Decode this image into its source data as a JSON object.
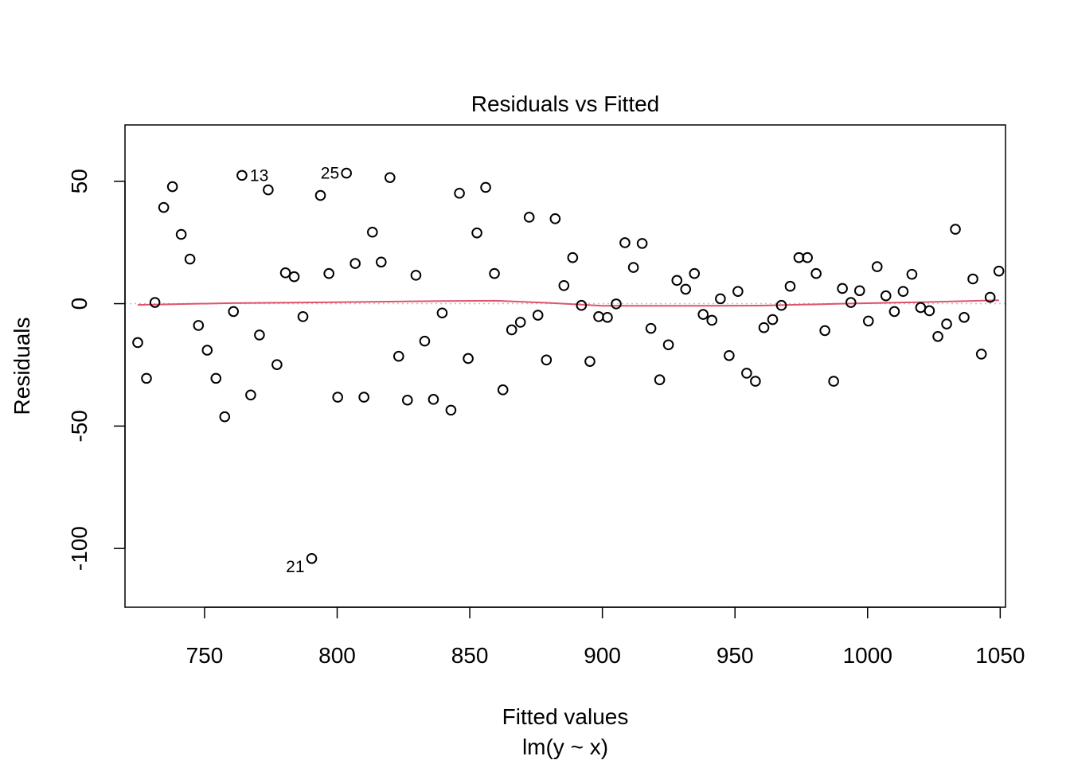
{
  "chart_data": {
    "type": "scatter",
    "title": "Residuals vs Fitted",
    "xlabel": "Fitted values",
    "subtitle": "lm(y ~ x)",
    "ylabel": "Residuals",
    "xlim": [
      720,
      1052
    ],
    "ylim": [
      -124,
      73
    ],
    "xticks": [
      750,
      800,
      850,
      900,
      950,
      1000,
      1050
    ],
    "yticks": [
      -100,
      -50,
      0,
      50
    ],
    "reference_line": 0,
    "colors": {
      "points": "#000000",
      "smoother": "#DF536B",
      "reference": "#BEBEBE"
    },
    "points": [
      {
        "x": 724.8,
        "y": -15.9
      },
      {
        "x": 728.1,
        "y": -30.5
      },
      {
        "x": 731.3,
        "y": 0.5
      },
      {
        "x": 734.6,
        "y": 39.3
      },
      {
        "x": 737.9,
        "y": 47.8
      },
      {
        "x": 741.2,
        "y": 28.3
      },
      {
        "x": 744.5,
        "y": 18.2
      },
      {
        "x": 747.7,
        "y": -8.9
      },
      {
        "x": 751.0,
        "y": -19.0
      },
      {
        "x": 754.3,
        "y": -30.5
      },
      {
        "x": 757.6,
        "y": -46.2
      },
      {
        "x": 760.9,
        "y": -3.2
      },
      {
        "x": 764.1,
        "y": 52.4,
        "label": "13"
      },
      {
        "x": 767.4,
        "y": -37.3
      },
      {
        "x": 770.7,
        "y": -12.8
      },
      {
        "x": 774.0,
        "y": 46.5
      },
      {
        "x": 777.3,
        "y": -24.9
      },
      {
        "x": 780.5,
        "y": 12.6
      },
      {
        "x": 783.8,
        "y": 11.0
      },
      {
        "x": 787.1,
        "y": -5.3
      },
      {
        "x": 790.4,
        "y": -104.1,
        "label": "21"
      },
      {
        "x": 793.7,
        "y": 44.2
      },
      {
        "x": 796.9,
        "y": 12.3
      },
      {
        "x": 800.2,
        "y": -38.2
      },
      {
        "x": 803.5,
        "y": 53.3,
        "label": "25"
      },
      {
        "x": 806.8,
        "y": 16.4
      },
      {
        "x": 810.1,
        "y": -38.2
      },
      {
        "x": 813.3,
        "y": 29.2
      },
      {
        "x": 816.6,
        "y": 17.0
      },
      {
        "x": 819.9,
        "y": 51.5
      },
      {
        "x": 823.2,
        "y": -21.5
      },
      {
        "x": 826.5,
        "y": -39.4
      },
      {
        "x": 829.7,
        "y": 11.6
      },
      {
        "x": 833.0,
        "y": -15.3
      },
      {
        "x": 836.3,
        "y": -39.1
      },
      {
        "x": 839.6,
        "y": -3.8
      },
      {
        "x": 842.9,
        "y": -43.5
      },
      {
        "x": 846.1,
        "y": 45.1
      },
      {
        "x": 849.4,
        "y": -22.4
      },
      {
        "x": 852.7,
        "y": 28.9
      },
      {
        "x": 856.0,
        "y": 47.5
      },
      {
        "x": 859.3,
        "y": 12.3
      },
      {
        "x": 862.5,
        "y": -35.2
      },
      {
        "x": 865.8,
        "y": -10.7
      },
      {
        "x": 869.1,
        "y": -7.6
      },
      {
        "x": 872.4,
        "y": 35.3
      },
      {
        "x": 875.7,
        "y": -4.7
      },
      {
        "x": 878.9,
        "y": -23.0
      },
      {
        "x": 882.2,
        "y": 34.7
      },
      {
        "x": 885.5,
        "y": 7.4
      },
      {
        "x": 888.8,
        "y": 18.8
      },
      {
        "x": 892.1,
        "y": -0.7
      },
      {
        "x": 895.3,
        "y": -23.6
      },
      {
        "x": 898.6,
        "y": -5.3
      },
      {
        "x": 901.9,
        "y": -5.6
      },
      {
        "x": 905.2,
        "y": -0.1
      },
      {
        "x": 908.5,
        "y": 24.9
      },
      {
        "x": 911.7,
        "y": 14.8
      },
      {
        "x": 915.0,
        "y": 24.6
      },
      {
        "x": 918.3,
        "y": -10.1
      },
      {
        "x": 921.6,
        "y": -31.1
      },
      {
        "x": 924.9,
        "y": -16.8
      },
      {
        "x": 928.1,
        "y": 9.5
      },
      {
        "x": 931.4,
        "y": 5.9
      },
      {
        "x": 934.7,
        "y": 12.3
      },
      {
        "x": 938.0,
        "y": -4.4
      },
      {
        "x": 941.3,
        "y": -6.8
      },
      {
        "x": 944.5,
        "y": 2.0
      },
      {
        "x": 947.8,
        "y": -21.2
      },
      {
        "x": 951.1,
        "y": 5.0
      },
      {
        "x": 954.4,
        "y": -28.4
      },
      {
        "x": 957.7,
        "y": -31.7
      },
      {
        "x": 960.9,
        "y": -9.8
      },
      {
        "x": 964.2,
        "y": -6.5
      },
      {
        "x": 967.5,
        "y": -0.7
      },
      {
        "x": 970.8,
        "y": 7.1
      },
      {
        "x": 974.1,
        "y": 18.8
      },
      {
        "x": 977.3,
        "y": 18.8
      },
      {
        "x": 980.6,
        "y": 12.3
      },
      {
        "x": 983.9,
        "y": -11.0
      },
      {
        "x": 987.2,
        "y": -31.7
      },
      {
        "x": 990.5,
        "y": 6.2
      },
      {
        "x": 993.7,
        "y": 0.5
      },
      {
        "x": 997.0,
        "y": 5.3
      },
      {
        "x": 1000.3,
        "y": -7.1
      },
      {
        "x": 1003.6,
        "y": 15.1
      },
      {
        "x": 1006.9,
        "y": 3.2
      },
      {
        "x": 1010.1,
        "y": -3.2
      },
      {
        "x": 1013.4,
        "y": 5.0
      },
      {
        "x": 1016.7,
        "y": 12.0
      },
      {
        "x": 1020.0,
        "y": -1.6
      },
      {
        "x": 1023.3,
        "y": -2.9
      },
      {
        "x": 1026.5,
        "y": -13.4
      },
      {
        "x": 1029.8,
        "y": -8.3
      },
      {
        "x": 1033.1,
        "y": 30.4
      },
      {
        "x": 1036.4,
        "y": -5.6
      },
      {
        "x": 1039.7,
        "y": 10.1
      },
      {
        "x": 1042.9,
        "y": -20.6
      },
      {
        "x": 1046.2,
        "y": 2.6
      },
      {
        "x": 1049.5,
        "y": 13.3
      }
    ],
    "smoother": [
      [
        724.8,
        -0.5
      ],
      [
        760.0,
        0.2
      ],
      [
        800.0,
        0.6
      ],
      [
        840.0,
        1.1
      ],
      [
        860.0,
        1.2
      ],
      [
        880.0,
        0.3
      ],
      [
        900.0,
        -0.9
      ],
      [
        930.0,
        -0.9
      ],
      [
        960.0,
        -0.8
      ],
      [
        990.0,
        0.0
      ],
      [
        1020.0,
        0.6
      ],
      [
        1049.5,
        1.4
      ]
    ]
  }
}
